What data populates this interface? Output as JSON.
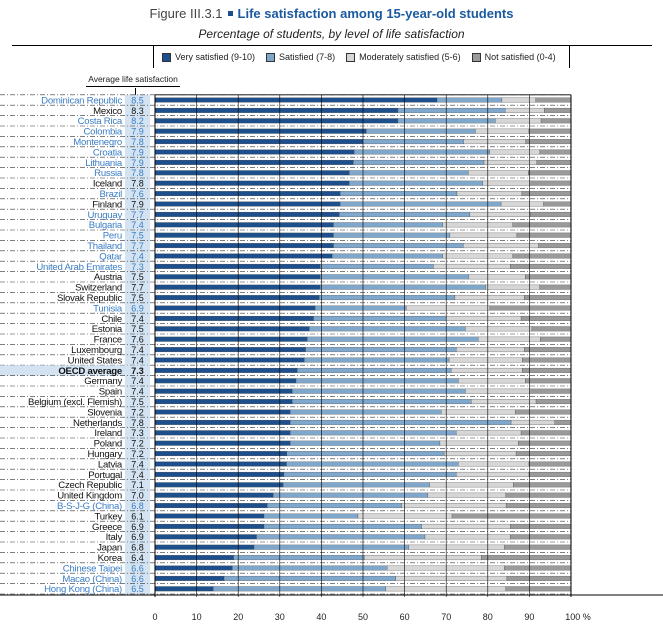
{
  "figure_number": "Figure III.3.1",
  "chart_data": {
    "type": "bar",
    "orientation": "horizontal",
    "stacked": true,
    "title": "Life satisfaction among 15-year-old students",
    "subtitle": "Percentage of students, by level of life satisfaction",
    "value_column_label": "Average life satisfaction",
    "xlim": [
      0,
      100
    ],
    "x_ticks": [
      "0",
      "10",
      "20",
      "30",
      "40",
      "50",
      "60",
      "70",
      "80",
      "90",
      "100 %"
    ],
    "grid": true,
    "legend_position": "top",
    "colors": {
      "very": "#1c4f8b",
      "satisfied": "#7fa7cb",
      "moderate": "#d6d6d6",
      "not": "#9a9a9a",
      "partner_label": "#3b7dc4",
      "country_label": "#111111",
      "value_bg": "#d3e3f2"
    },
    "series": [
      {
        "name": "Very satisfied (9-10)"
      },
      {
        "name": "Satisfied (7-8)"
      },
      {
        "name": "Moderately satisfied (5-6)"
      },
      {
        "name": "Not satisfied (0-4)"
      }
    ],
    "rows": [
      {
        "country": "Dominican Republic",
        "avg": "8.5",
        "partner": true,
        "values": [
          67.8,
          15.6,
          8.1,
          8.5
        ]
      },
      {
        "country": "Mexico",
        "avg": "8.3",
        "partner": false,
        "values": [
          58.4,
          25.8,
          9.4,
          6.4
        ]
      },
      {
        "country": "Costa Rica",
        "avg": "8.2",
        "partner": true,
        "values": [
          58.4,
          23.4,
          11.0,
          7.2
        ]
      },
      {
        "country": "Colombia",
        "avg": "7.9",
        "partner": true,
        "values": [
          50.8,
          26.2,
          12.9,
          10.1
        ]
      },
      {
        "country": "Montenegro",
        "avg": "7.8",
        "partner": true,
        "values": [
          50.0,
          24.2,
          14.9,
          10.9
        ]
      },
      {
        "country": "Croatia",
        "avg": "7.9",
        "partner": true,
        "values": [
          47.9,
          32.6,
          12.0,
          7.5
        ]
      },
      {
        "country": "Lithuania",
        "avg": "7.9",
        "partner": true,
        "values": [
          47.7,
          31.4,
          12.7,
          8.2
        ]
      },
      {
        "country": "Russia",
        "avg": "7.8",
        "partner": true,
        "values": [
          46.7,
          28.6,
          14.4,
          10.3
        ]
      },
      {
        "country": "Iceland",
        "avg": "7.8",
        "partner": false,
        "values": [
          46.7,
          32.1,
          11.5,
          9.7
        ]
      },
      {
        "country": "Brazil",
        "avg": "7.6",
        "partner": true,
        "values": [
          44.5,
          28.1,
          15.6,
          11.8
        ]
      },
      {
        "country": "Finland",
        "avg": "7.9",
        "partner": false,
        "values": [
          44.5,
          38.7,
          10.2,
          6.6
        ]
      },
      {
        "country": "Uruguay",
        "avg": "7.7",
        "partner": true,
        "values": [
          44.3,
          31.4,
          14.5,
          9.8
        ]
      },
      {
        "country": "Bulgaria",
        "avg": "7.4",
        "partner": true,
        "values": [
          42.9,
          26.3,
          16.8,
          14.0
        ]
      },
      {
        "country": "Peru",
        "avg": "7.5",
        "partner": true,
        "values": [
          42.9,
          28.0,
          16.1,
          13.0
        ]
      },
      {
        "country": "Thailand",
        "avg": "7.7",
        "partner": true,
        "values": [
          42.9,
          31.2,
          18.1,
          7.8
        ]
      },
      {
        "country": "Qatar",
        "avg": "7.4",
        "partner": true,
        "values": [
          42.6,
          26.6,
          16.8,
          14.0
        ]
      },
      {
        "country": "United Arab Emirates",
        "avg": "7.3",
        "partner": true,
        "values": [
          39.7,
          27.2,
          18.5,
          14.6
        ]
      },
      {
        "country": "Austria",
        "avg": "7.5",
        "partner": false,
        "values": [
          39.7,
          35.7,
          13.6,
          11.0
        ]
      },
      {
        "country": "Switzerland",
        "avg": "7.7",
        "partner": false,
        "values": [
          39.7,
          39.8,
          13.0,
          7.5
        ]
      },
      {
        "country": "Slovak Republic",
        "avg": "7.5",
        "partner": false,
        "values": [
          39.5,
          32.6,
          16.7,
          11.2
        ]
      },
      {
        "country": "Tunisia",
        "avg": "6.9",
        "partner": true,
        "values": [
          38.5,
          21.9,
          20.1,
          19.5
        ]
      },
      {
        "country": "Chile",
        "avg": "7.4",
        "partner": false,
        "values": [
          38.1,
          31.9,
          18.0,
          12.0
        ]
      },
      {
        "country": "Estonia",
        "avg": "7.5",
        "partner": false,
        "values": [
          37.1,
          37.5,
          16.0,
          9.4
        ]
      },
      {
        "country": "France",
        "avg": "7.6",
        "partner": false,
        "values": [
          36.6,
          41.1,
          14.9,
          7.4
        ]
      },
      {
        "country": "Luxembourg",
        "avg": "7.4",
        "partner": false,
        "values": [
          36.2,
          36.2,
          16.4,
          11.2
        ]
      },
      {
        "country": "United States",
        "avg": "7.4",
        "partner": false,
        "values": [
          35.9,
          34.8,
          17.6,
          11.7
        ]
      },
      {
        "country": "OECD average",
        "avg": "7.3",
        "partner": false,
        "highlight": true,
        "values": [
          34.2,
          37.0,
          17.1,
          11.7
        ]
      },
      {
        "country": "Germany",
        "avg": "7.4",
        "partner": false,
        "values": [
          33.9,
          39.0,
          16.1,
          11.0
        ]
      },
      {
        "country": "Spain",
        "avg": "7.4",
        "partner": false,
        "values": [
          33.0,
          41.6,
          15.7,
          9.7
        ]
      },
      {
        "country": "Belgium (excl. Flemish)",
        "avg": "7.5",
        "partner": false,
        "values": [
          33.0,
          43.0,
          15.6,
          8.4
        ]
      },
      {
        "country": "Slovenia",
        "avg": "7.2",
        "partner": false,
        "values": [
          32.5,
          36.3,
          17.8,
          13.4
        ]
      },
      {
        "country": "Netherlands",
        "avg": "7.8",
        "partner": false,
        "values": [
          32.5,
          53.1,
          10.5,
          3.9
        ]
      },
      {
        "country": "Ireland",
        "avg": "7.3",
        "partner": false,
        "values": [
          32.5,
          39.9,
          15.6,
          12.0
        ]
      },
      {
        "country": "Poland",
        "avg": "7.2",
        "partner": false,
        "values": [
          32.5,
          36.0,
          18.8,
          12.7
        ]
      },
      {
        "country": "Hungary",
        "avg": "7.2",
        "partner": false,
        "values": [
          31.7,
          37.8,
          17.3,
          13.2
        ]
      },
      {
        "country": "Latvia",
        "avg": "7.4",
        "partner": false,
        "values": [
          31.6,
          41.3,
          17.0,
          10.1
        ]
      },
      {
        "country": "Portugal",
        "avg": "7.4",
        "partner": false,
        "values": [
          31.0,
          41.4,
          17.5,
          10.1
        ]
      },
      {
        "country": "Czech Republic",
        "avg": "7.1",
        "partner": false,
        "values": [
          30.8,
          35.2,
          20.1,
          13.9
        ]
      },
      {
        "country": "United Kingdom",
        "avg": "7.0",
        "partner": false,
        "values": [
          28.4,
          37.2,
          18.7,
          15.7
        ]
      },
      {
        "country": "B-S-J-G (China)",
        "avg": "6.8",
        "partner": true,
        "values": [
          27.0,
          32.3,
          25.1,
          15.6
        ]
      },
      {
        "country": "Turkey",
        "avg": "6.1",
        "partner": false,
        "values": [
          26.2,
          22.6,
          22.6,
          28.6
        ]
      },
      {
        "country": "Greece",
        "avg": "6.9",
        "partner": false,
        "values": [
          26.2,
          37.9,
          21.3,
          14.6
        ]
      },
      {
        "country": "Italy",
        "avg": "6.9",
        "partner": false,
        "values": [
          24.4,
          40.5,
          20.5,
          14.6
        ]
      },
      {
        "country": "Japan",
        "avg": "6.8",
        "partner": false,
        "values": [
          23.8,
          37.2,
          23.0,
          16.0
        ]
      },
      {
        "country": "Korea",
        "avg": "6.4",
        "partner": false,
        "values": [
          18.9,
          31.4,
          28.1,
          21.6
        ]
      },
      {
        "country": "Chinese Taipei",
        "avg": "6.6",
        "partner": true,
        "values": [
          18.6,
          37.2,
          28.2,
          16.0
        ]
      },
      {
        "country": "Macao (China)",
        "avg": "6.6",
        "partner": true,
        "values": [
          16.6,
          41.3,
          26.7,
          15.4
        ]
      },
      {
        "country": "Hong Kong (China)",
        "avg": "6.5",
        "partner": true,
        "values": [
          14.0,
          41.5,
          28.8,
          15.7
        ]
      }
    ]
  }
}
